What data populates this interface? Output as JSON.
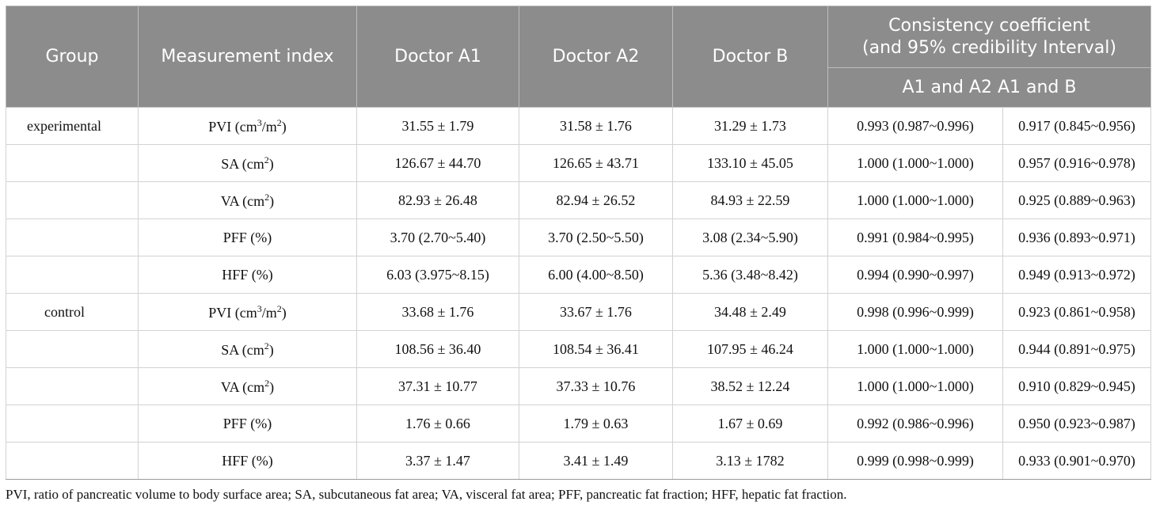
{
  "table": {
    "header": {
      "group": "Group",
      "measurement_index": "Measurement index",
      "doctor_a1": "Doctor A1",
      "doctor_a2": "Doctor A2",
      "doctor_b": "Doctor B",
      "consistency_line1": "Consistency coefficient",
      "consistency_line2": "(and 95% credibility Interval)",
      "pair_label": "A1 and A2 A1 and B"
    },
    "rows": [
      {
        "group": "experimental",
        "index": "PVI (cm",
        "sup1": "3",
        "mid": "/m",
        "sup2": "2",
        "end": ")",
        "a1": "31.55 ± 1.79",
        "a2": "31.58 ± 1.76",
        "b": "31.29 ± 1.73",
        "c1": "0.993 (0.987~0.996)",
        "c2": "0.917 (0.845~0.956)"
      },
      {
        "group": "",
        "index": "SA (cm",
        "sup1": "2",
        "mid": "",
        "sup2": "",
        "end": ")",
        "a1": "126.67 ± 44.70",
        "a2": "126.65 ± 43.71",
        "b": "133.10 ± 45.05",
        "c1": "1.000 (1.000~1.000)",
        "c2": "0.957 (0.916~0.978)"
      },
      {
        "group": "",
        "index": "VA (cm",
        "sup1": "2",
        "mid": "",
        "sup2": "",
        "end": ")",
        "a1": "82.93 ± 26.48",
        "a2": "82.94 ± 26.52",
        "b": "84.93 ± 22.59",
        "c1": "1.000 (1.000~1.000)",
        "c2": "0.925 (0.889~0.963)"
      },
      {
        "group": "",
        "index": "PFF (%)",
        "sup1": "",
        "mid": "",
        "sup2": "",
        "end": "",
        "a1": "3.70 (2.70~5.40)",
        "a2": "3.70 (2.50~5.50)",
        "b": "3.08 (2.34~5.90)",
        "c1": "0.991 (0.984~0.995)",
        "c2": "0.936 (0.893~0.971)"
      },
      {
        "group": "",
        "index": "HFF (%)",
        "sup1": "",
        "mid": "",
        "sup2": "",
        "end": "",
        "a1": "6.03 (3.975~8.15)",
        "a2": "6.00 (4.00~8.50)",
        "b": "5.36 (3.48~8.42)",
        "c1": "0.994 (0.990~0.997)",
        "c2": "0.949 (0.913~0.972)"
      },
      {
        "group": "control",
        "index": "PVI (cm",
        "sup1": "3",
        "mid": "/m",
        "sup2": "2",
        "end": ")",
        "a1": "33.68 ± 1.76",
        "a2": "33.67 ± 1.76",
        "b": "34.48 ± 2.49",
        "c1": "0.998 (0.996~0.999)",
        "c2": "0.923 (0.861~0.958)"
      },
      {
        "group": "",
        "index": "SA (cm",
        "sup1": "2",
        "mid": "",
        "sup2": "",
        "end": ")",
        "a1": "108.56 ± 36.40",
        "a2": "108.54 ± 36.41",
        "b": "107.95 ± 46.24",
        "c1": "1.000 (1.000~1.000)",
        "c2": "0.944 (0.891~0.975)"
      },
      {
        "group": "",
        "index": "VA (cm",
        "sup1": "2",
        "mid": "",
        "sup2": "",
        "end": ")",
        "a1": "37.31 ± 10.77",
        "a2": "37.33 ± 10.76",
        "b": "38.52 ± 12.24",
        "c1": "1.000 (1.000~1.000)",
        "c2": "0.910 (0.829~0.945)"
      },
      {
        "group": "",
        "index": "PFF (%)",
        "sup1": "",
        "mid": "",
        "sup2": "",
        "end": "",
        "a1": "1.76 ± 0.66",
        "a2": "1.79 ± 0.63",
        "b": "1.67 ± 0.69",
        "c1": "0.992 (0.986~0.996)",
        "c2": "0.950 (0.923~0.987)"
      },
      {
        "group": "",
        "index": "HFF (%)",
        "sup1": "",
        "mid": "",
        "sup2": "",
        "end": "",
        "a1": "3.37 ± 1.47",
        "a2": "3.41 ± 1.49",
        "b": "3.13 ± 1782",
        "c1": "0.999 (0.998~0.999)",
        "c2": "0.933 (0.901~0.970)"
      }
    ]
  },
  "footnote": "PVI, ratio of pancreatic volume to body surface area; SA, subcutaneous fat area; VA, visceral fat area;  PFF, pancreatic fat fraction; HFF, hepatic fat fraction."
}
